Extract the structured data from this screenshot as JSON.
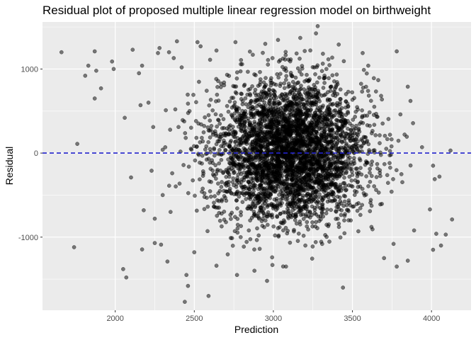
{
  "chart_data": {
    "type": "scatter",
    "title": "Residual plot of proposed multiple linear regression model on birthweight",
    "xlabel": "Prediction",
    "ylabel": "Residual",
    "xlim": [
      1540,
      4250
    ],
    "ylim": [
      -1870,
      1560
    ],
    "x_ticks": [
      2000,
      2500,
      3000,
      3500,
      4000
    ],
    "x_minor_ticks": [
      2250,
      2750,
      3250,
      3750
    ],
    "y_ticks": [
      -1000,
      0,
      1000
    ],
    "y_minor_ticks": [
      -1500,
      -500,
      500,
      1500
    ],
    "x_tick_labels": [
      "2000",
      "2500",
      "3000",
      "3500",
      "4000"
    ],
    "y_tick_labels": [
      "-1000",
      "0",
      "1000"
    ],
    "reference_line": {
      "y": 0,
      "style": "dashed",
      "color": "#2222cc"
    },
    "grid": true,
    "colors": {
      "panel": "#ebebeb",
      "grid": "#ffffff",
      "point": "#000000",
      "point_alpha": 0.5
    },
    "cluster": {
      "center_x": 3110,
      "center_y": 30,
      "sd_x": 240,
      "sd_y": 420,
      "n_points": 3900
    },
    "points": [
      [
        1660,
        1200
      ],
      [
        1760,
        110
      ],
      [
        1740,
        -1120
      ],
      [
        1810,
        920
      ],
      [
        1830,
        1040
      ],
      [
        1870,
        1210
      ],
      [
        1870,
        650
      ],
      [
        1880,
        980
      ],
      [
        1910,
        770
      ],
      [
        1980,
        1090
      ],
      [
        1990,
        1000
      ],
      [
        2050,
        -1380
      ],
      [
        2070,
        -1480
      ],
      [
        2060,
        420
      ],
      [
        2100,
        -290
      ],
      [
        2110,
        1230
      ],
      [
        2150,
        950
      ],
      [
        2170,
        1040
      ],
      [
        2180,
        -680
      ],
      [
        2160,
        570
      ],
      [
        2210,
        600
      ],
      [
        2230,
        -210
      ],
      [
        2240,
        310
      ],
      [
        2250,
        -1070
      ],
      [
        2250,
        -780
      ],
      [
        2270,
        1190
      ],
      [
        2280,
        1250
      ],
      [
        2290,
        -1090
      ],
      [
        2300,
        -500
      ],
      [
        2300,
        40
      ],
      [
        2320,
        510
      ],
      [
        2330,
        -1290
      ],
      [
        2340,
        1200
      ],
      [
        2350,
        -700
      ],
      [
        2360,
        -240
      ],
      [
        2370,
        1130
      ],
      [
        2380,
        520
      ],
      [
        2390,
        1330
      ],
      [
        2400,
        310
      ],
      [
        2420,
        1020
      ],
      [
        2440,
        -1770
      ],
      [
        2450,
        -1450
      ],
      [
        2460,
        -1580
      ],
      [
        2470,
        500
      ],
      [
        2520,
        1320
      ],
      [
        2540,
        1270
      ],
      [
        2590,
        -1700
      ],
      [
        2600,
        1110
      ],
      [
        2640,
        1220
      ],
      [
        2760,
        1320
      ],
      [
        2870,
        1170
      ],
      [
        2880,
        -1400
      ],
      [
        2960,
        -1520
      ],
      [
        3080,
        -1350
      ],
      [
        3170,
        1370
      ],
      [
        3280,
        1510
      ],
      [
        3440,
        -1600
      ],
      [
        3600,
        1040
      ],
      [
        3780,
        1210
      ],
      [
        3780,
        -1350
      ],
      [
        3850,
        790
      ],
      [
        3830,
        220
      ],
      [
        3850,
        -1280
      ],
      [
        3940,
        70
      ],
      [
        3990,
        -670
      ],
      [
        4010,
        -150
      ],
      [
        4020,
        -310
      ],
      [
        4050,
        -280
      ],
      [
        4060,
        -1100
      ],
      [
        4090,
        -970
      ],
      [
        4120,
        30
      ],
      [
        4130,
        -790
      ],
      [
        4010,
        -1150
      ],
      [
        4030,
        -960
      ],
      [
        3890,
        -920
      ],
      [
        3760,
        -1080
      ],
      [
        3700,
        -1250
      ],
      [
        2640,
        -1340
      ],
      [
        2770,
        -1450
      ],
      [
        2500,
        -1180
      ]
    ]
  }
}
